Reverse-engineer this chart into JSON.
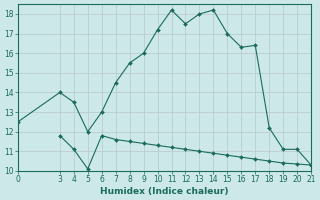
{
  "xlabel": "Humidex (Indice chaleur)",
  "bg_color": "#cce8e8",
  "grid_color": "#b8c8c8",
  "line_color": "#1a6b5a",
  "xlim": [
    0,
    21
  ],
  "ylim": [
    10,
    18.5
  ],
  "yticks": [
    10,
    11,
    12,
    13,
    14,
    15,
    16,
    17,
    18
  ],
  "xticks": [
    0,
    3,
    4,
    5,
    6,
    7,
    8,
    9,
    10,
    11,
    12,
    13,
    14,
    15,
    16,
    17,
    18,
    19,
    20,
    21
  ],
  "series1_x": [
    0,
    3,
    4,
    5,
    6,
    7,
    8,
    9,
    10,
    11,
    12,
    13,
    14,
    15,
    16,
    17,
    18,
    19,
    20,
    21
  ],
  "series1_y": [
    12.5,
    14.0,
    13.5,
    12.0,
    13.0,
    14.5,
    15.5,
    16.0,
    17.2,
    18.2,
    17.5,
    18.0,
    18.2,
    17.0,
    16.3,
    16.4,
    12.2,
    11.1,
    11.1,
    10.3
  ],
  "series2_x": [
    3,
    4,
    5,
    6,
    7,
    8,
    9,
    10,
    11,
    12,
    13,
    14,
    15,
    16,
    17,
    18,
    19,
    20,
    21
  ],
  "series2_y": [
    11.8,
    11.1,
    10.1,
    11.8,
    11.6,
    11.5,
    11.4,
    11.3,
    11.2,
    11.1,
    11.0,
    10.9,
    10.8,
    10.7,
    10.6,
    10.5,
    10.4,
    10.35,
    10.3
  ],
  "tick_fontsize": 5.5,
  "xlabel_fontsize": 6.5,
  "marker_size": 2.0,
  "line_width": 0.8
}
